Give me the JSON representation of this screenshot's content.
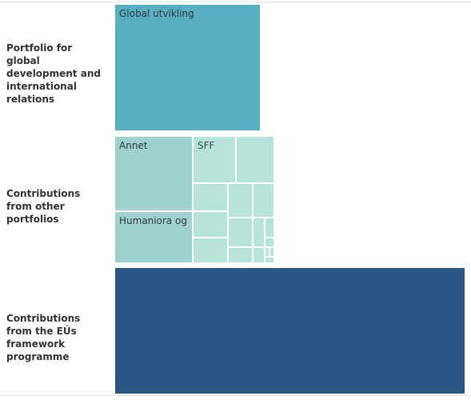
{
  "chart_data": {
    "type": "treemap",
    "rows": [
      {
        "label": "Portfolio for global development and international relations",
        "color": "#5aaec1",
        "tiles": [
          {
            "label": "Global utvikling"
          }
        ]
      },
      {
        "label": "Contributions from other portfolios",
        "color": "#a6d8d4",
        "tiles": [
          {
            "label": "Annet"
          },
          {
            "label": "SFF"
          },
          {
            "label": "Humaniora og"
          }
        ]
      },
      {
        "label": "Contributions from the EÚs framework programme",
        "color": "#2c5784",
        "tiles": [
          {
            "label": ""
          }
        ]
      }
    ],
    "colors": {
      "row1": "#5aaec1",
      "row2_dark": "#9fd2cf",
      "row2_light": "#b6e3da",
      "row3": "#2c5784"
    }
  }
}
